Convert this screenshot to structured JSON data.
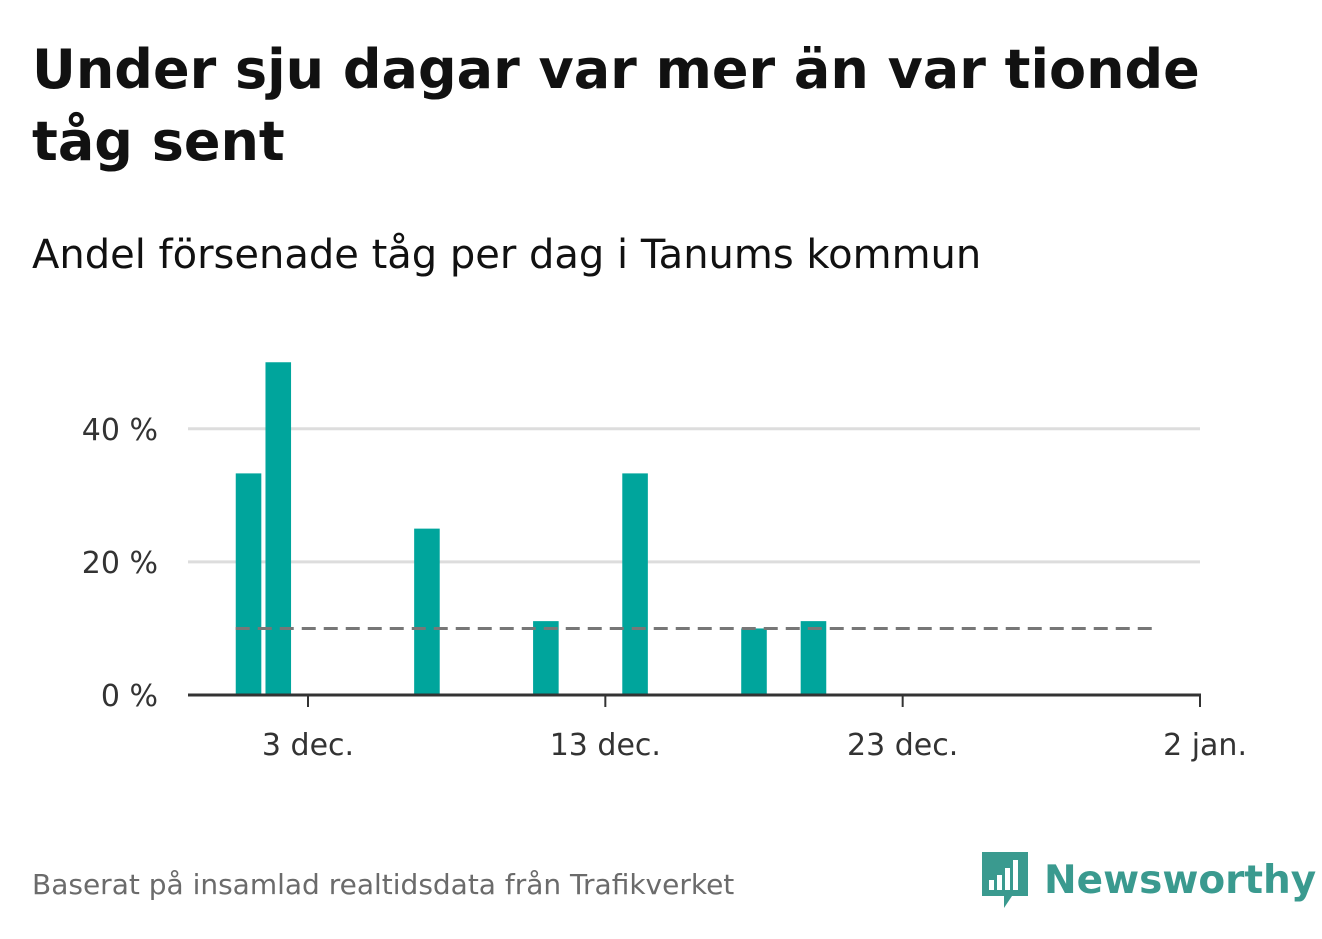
{
  "title": "Under sju dagar var mer än var tionde tåg sent",
  "subtitle": "Andel försenade tåg per dag i Tanums kommun",
  "footer": {
    "note": "Baserat på insamlad realtidsdata från Trafikverket",
    "brand": "Newsworthy",
    "brand_icon": "newsworthy-logo-icon"
  },
  "colors": {
    "bar": "#00a59c",
    "reference_line": "#777777",
    "grid": "#dddddd",
    "axis": "#333333",
    "brand": "#3a9a8f"
  },
  "chart_data": {
    "type": "bar",
    "x": [
      "2023-12-01",
      "2023-12-02",
      "2023-12-07",
      "2023-12-11",
      "2023-12-14",
      "2023-12-18",
      "2023-12-20"
    ],
    "values": [
      33.3,
      50,
      25,
      11.1,
      33.3,
      10,
      11.1
    ],
    "unit": "%",
    "reference_line": 10,
    "xlim": [
      "2023-11-30",
      "2024-01-02"
    ],
    "ylim": [
      0,
      50
    ],
    "x_ticks": [
      {
        "date": "2023-12-03",
        "label": "3 dec."
      },
      {
        "date": "2023-12-13",
        "label": "13 dec."
      },
      {
        "date": "2023-12-23",
        "label": "23 dec."
      },
      {
        "date": "2024-01-02",
        "label": "2 jan."
      }
    ],
    "y_ticks": [
      {
        "value": 0,
        "label": "0 %"
      },
      {
        "value": 20,
        "label": "20 %"
      },
      {
        "value": 40,
        "label": "40 %"
      }
    ],
    "grid": true
  }
}
